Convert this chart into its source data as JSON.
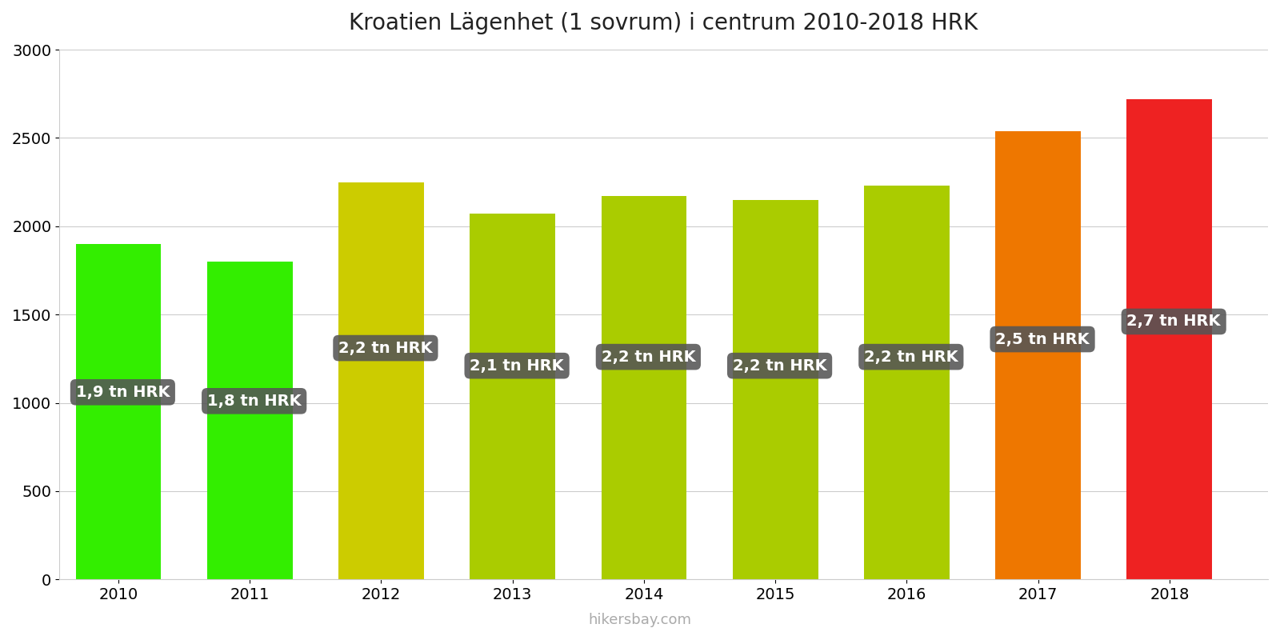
{
  "title": "Kroatien Lägenhet (1 sovrum) i centrum 2010-2018 HRK",
  "years": [
    2010,
    2011,
    2012,
    2013,
    2014,
    2015,
    2016,
    2017,
    2018
  ],
  "values": [
    1900,
    1800,
    2250,
    2070,
    2170,
    2150,
    2230,
    2540,
    2720
  ],
  "bar_colors": [
    "#33ee00",
    "#33ee00",
    "#cccc00",
    "#aacc00",
    "#aacc00",
    "#aacc00",
    "#aacc00",
    "#ee7700",
    "#ee2222"
  ],
  "labels": [
    "1,9 tn HRK",
    "1,8 tn HRK",
    "2,2 tn HRK",
    "2,1 tn HRK",
    "2,2 tn HRK",
    "2,2 tn HRK",
    "2,2 tn HRK",
    "2,5 tn HRK",
    "2,7 tn HRK"
  ],
  "label_y_positions": [
    1060,
    1010,
    1310,
    1210,
    1260,
    1210,
    1260,
    1360,
    1460
  ],
  "ylim": [
    0,
    3000
  ],
  "yticks": [
    0,
    500,
    1000,
    1500,
    2000,
    2500,
    3000
  ],
  "watermark": "hikersbay.com",
  "background_color": "#ffffff",
  "label_box_color": "#555555",
  "label_text_color": "#ffffff",
  "title_fontsize": 20,
  "tick_fontsize": 14,
  "label_fontsize": 14
}
